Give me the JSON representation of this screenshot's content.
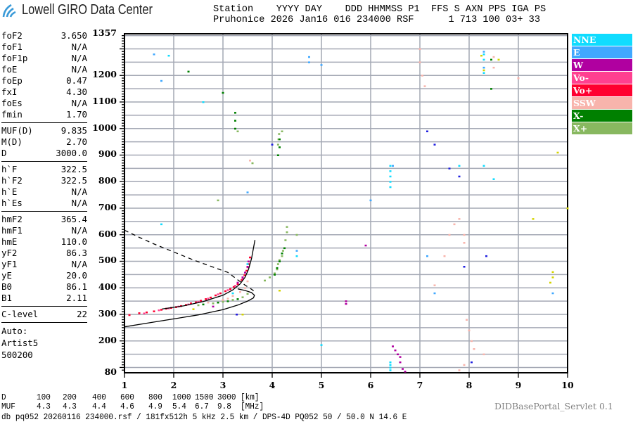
{
  "header": {
    "logo_text": "Lowell GIRO Data Center",
    "line1": "Station    YYYY DAY    DDD HHMMSS P1  FFS S AXN PPS IGA PS",
    "line2": "Pruhonice 2026 Jan16 016 234000 RSF      1 713 100 03+ 33"
  },
  "params": {
    "group1": [
      [
        "foF2",
        "3.650"
      ],
      [
        "foF1",
        "N/A"
      ],
      [
        "foF1p",
        "N/A"
      ],
      [
        "foE",
        "N/A"
      ],
      [
        "foEp",
        "0.47"
      ],
      [
        "fxI",
        "4.30"
      ],
      [
        "foEs",
        "N/A"
      ],
      [
        "fmin",
        "1.70"
      ]
    ],
    "group2": [
      [
        "MUF(D)",
        "9.835"
      ],
      [
        "M(D)",
        "2.70"
      ],
      [
        "D",
        "3000.0"
      ]
    ],
    "group3": [
      [
        "h`F",
        "322.5"
      ],
      [
        "h`F2",
        "322.5"
      ],
      [
        "h`E",
        "N/A"
      ],
      [
        "h`Es",
        "N/A"
      ]
    ],
    "group4": [
      [
        "hmF2",
        "365.4"
      ],
      [
        "hmF1",
        "N/A"
      ],
      [
        "hmE",
        "110.0"
      ],
      [
        "yF2",
        "86.3"
      ],
      [
        "yF1",
        "N/A"
      ],
      [
        "yE",
        "20.0"
      ],
      [
        "B0",
        "86.1"
      ],
      [
        "B1",
        "2.11"
      ]
    ],
    "group5": [
      [
        "C-level",
        "22"
      ]
    ],
    "auto": [
      "Auto:",
      "Artist5",
      "500200"
    ]
  },
  "legend": [
    {
      "label": "NNE",
      "color": "#10dcff"
    },
    {
      "label": "E",
      "color": "#40a8ff"
    },
    {
      "label": "W",
      "color": "#b000a0"
    },
    {
      "label": "Vo-",
      "color": "#ff4090"
    },
    {
      "label": "Vo+",
      "color": "#ff0030"
    },
    {
      "label": "SSW",
      "color": "#f8b4ac"
    },
    {
      "label": "X-",
      "color": "#008000"
    },
    {
      "label": "X+",
      "color": "#88b860"
    }
  ],
  "unlabeled_colors": {
    "yellow": "#d4d400",
    "blue": "#2020e0"
  },
  "mufs": {
    "d_label": "D",
    "d_values": [
      "100",
      "200",
      "400",
      "600",
      "800",
      "1000",
      "1500",
      "3000"
    ],
    "d_unit": "[km]",
    "muf_label": "MUF",
    "muf_values": [
      "4.3",
      "4.3",
      "4.4",
      "4.6",
      "4.9",
      "5.4",
      "6.7",
      "9.8"
    ],
    "muf_unit": "[MHz]"
  },
  "footer": {
    "servlet": "DIDBasePortal_Servlet 0.1",
    "db_line": "db pq052 20260116 234000.rsf / 181fx512h 5 kHz 2.5 km / DPS-4D PQ052 50 / 50.0 N 14.6 E"
  },
  "chart_data": {
    "type": "scatter",
    "title": "",
    "xlabel": "",
    "ylabel": "",
    "xlim": [
      1,
      10
    ],
    "ylim": [
      80,
      1357
    ],
    "x_ticks": [
      "1",
      "2",
      "3",
      "4",
      "5",
      "6",
      "7",
      "8",
      "9",
      "10"
    ],
    "y_ticks": [
      "1357",
      "1200",
      "1100",
      "1000",
      "900",
      "800",
      "700",
      "600",
      "500",
      "400",
      "300",
      "200",
      "80"
    ],
    "grid": true,
    "legend_placement": "right",
    "profile_solid": [
      [
        1.0,
        253
      ],
      [
        1.5,
        268
      ],
      [
        2.0,
        283
      ],
      [
        2.5,
        298
      ],
      [
        3.0,
        318
      ],
      [
        3.3,
        335
      ],
      [
        3.5,
        350
      ],
      [
        3.62,
        362
      ],
      [
        3.64,
        372
      ],
      [
        3.58,
        382
      ],
      [
        3.45,
        390
      ],
      [
        3.3,
        396
      ]
    ],
    "profile_solid_upper": [
      [
        1.76,
        320
      ],
      [
        2.2,
        332
      ],
      [
        2.6,
        348
      ],
      [
        3.0,
        372
      ],
      [
        3.2,
        392
      ],
      [
        3.35,
        415
      ],
      [
        3.45,
        440
      ],
      [
        3.52,
        470
      ],
      [
        3.58,
        510
      ],
      [
        3.62,
        550
      ],
      [
        3.65,
        580
      ]
    ],
    "profile_dashed": [
      [
        1.0,
        617
      ],
      [
        1.3,
        590
      ],
      [
        1.6,
        565
      ],
      [
        2.0,
        535
      ],
      [
        2.4,
        505
      ],
      [
        2.8,
        478
      ],
      [
        3.1,
        458
      ],
      [
        3.3,
        430
      ],
      [
        3.45,
        410
      ],
      [
        3.6,
        392
      ],
      [
        3.64,
        385
      ]
    ],
    "traces": [
      {
        "key": "Vo+",
        "points": [
          [
            1.1,
            298
          ],
          [
            1.3,
            305
          ],
          [
            1.45,
            308
          ],
          [
            1.6,
            312
          ],
          [
            1.75,
            318
          ],
          [
            1.85,
            322
          ],
          [
            1.95,
            325
          ],
          [
            2.05,
            328
          ],
          [
            2.15,
            332
          ],
          [
            2.25,
            336
          ],
          [
            2.35,
            342
          ],
          [
            2.45,
            346
          ],
          [
            2.55,
            352
          ],
          [
            2.65,
            358
          ],
          [
            2.75,
            364
          ],
          [
            2.85,
            372
          ],
          [
            2.95,
            380
          ],
          [
            3.05,
            388
          ],
          [
            3.15,
            396
          ],
          [
            3.22,
            404
          ],
          [
            3.3,
            415
          ],
          [
            3.38,
            430
          ],
          [
            3.44,
            448
          ],
          [
            3.48,
            465
          ],
          [
            3.52,
            490
          ],
          [
            3.55,
            515
          ]
        ]
      },
      {
        "key": "Vo-",
        "points": [
          [
            1.4,
            304
          ],
          [
            1.7,
            316
          ],
          [
            1.9,
            323
          ],
          [
            2.1,
            330
          ],
          [
            2.3,
            338
          ],
          [
            2.5,
            348
          ],
          [
            2.7,
            360
          ],
          [
            2.9,
            376
          ],
          [
            3.1,
            392
          ],
          [
            3.25,
            408
          ],
          [
            3.4,
            435
          ],
          [
            3.5,
            478
          ]
        ]
      },
      {
        "key": "W",
        "points": [
          [
            3.3,
            420
          ],
          [
            3.4,
            440
          ],
          [
            3.45,
            458
          ],
          [
            3.5,
            480
          ],
          [
            3.52,
            500
          ],
          [
            3.28,
            300
          ],
          [
            5.5,
            340
          ],
          [
            5.5,
            350
          ],
          [
            6.45,
            180
          ],
          [
            6.5,
            165
          ],
          [
            6.55,
            150
          ],
          [
            6.6,
            140
          ],
          [
            6.6,
            120
          ],
          [
            6.65,
            95
          ],
          [
            6.7,
            85
          ],
          [
            5.9,
            560
          ],
          [
            2.8,
            330
          ]
        ]
      },
      {
        "key": "SSW",
        "points": [
          [
            3.0,
            355
          ],
          [
            3.2,
            370
          ],
          [
            3.35,
            385
          ],
          [
            3.45,
            400
          ],
          [
            3.5,
            425
          ],
          [
            3.1,
            360
          ],
          [
            2.7,
            345
          ],
          [
            7.3,
            410
          ],
          [
            7.5,
            520
          ],
          [
            7.6,
            600
          ],
          [
            7.7,
            640
          ],
          [
            7.8,
            660
          ],
          [
            7.9,
            600
          ],
          [
            7.9,
            570
          ],
          [
            7.95,
            280
          ],
          [
            8.0,
            240
          ],
          [
            8.05,
            200
          ],
          [
            8.1,
            170
          ],
          [
            8.3,
            150
          ],
          [
            7.8,
            90
          ],
          [
            7.9,
            110
          ],
          [
            8.5,
            1270
          ],
          [
            8.5,
            1230
          ],
          [
            7.05,
            1200
          ],
          [
            7.1,
            1160
          ],
          [
            7.0,
            1250
          ],
          [
            9.0,
            1190
          ],
          [
            7.0,
            1300
          ],
          [
            3.55,
            880
          ]
        ]
      },
      {
        "key": "X+",
        "points": [
          [
            2.5,
            335
          ],
          [
            2.8,
            342
          ],
          [
            3.0,
            348
          ],
          [
            3.2,
            355
          ],
          [
            3.4,
            365
          ],
          [
            3.5,
            378
          ],
          [
            3.85,
            428
          ],
          [
            3.95,
            440
          ],
          [
            4.05,
            455
          ],
          [
            4.1,
            470
          ],
          [
            4.12,
            490
          ],
          [
            4.15,
            505
          ],
          [
            4.2,
            520
          ],
          [
            4.22,
            540
          ],
          [
            4.27,
            580
          ],
          [
            4.3,
            610
          ],
          [
            4.3,
            630
          ],
          [
            4.12,
            940
          ],
          [
            4.13,
            960
          ],
          [
            4.14,
            980
          ],
          [
            4.2,
            990
          ],
          [
            3.6,
            870
          ],
          [
            2.9,
            730
          ],
          [
            3.3,
            990
          ],
          [
            4.5,
            600
          ]
        ]
      },
      {
        "key": "X-",
        "points": [
          [
            2.6,
            338
          ],
          [
            2.9,
            345
          ],
          [
            3.1,
            350
          ],
          [
            3.3,
            358
          ],
          [
            4.05,
            450
          ],
          [
            4.1,
            475
          ],
          [
            4.15,
            500
          ],
          [
            4.2,
            530
          ],
          [
            4.25,
            550
          ],
          [
            4.12,
            900
          ],
          [
            4.15,
            930
          ],
          [
            4.15,
            960
          ],
          [
            3.25,
            1000
          ],
          [
            3.25,
            1030
          ],
          [
            3.25,
            1060
          ],
          [
            2.3,
            1215
          ],
          [
            3.0,
            1135
          ],
          [
            8.45,
            1260
          ],
          [
            8.45,
            1150
          ]
        ]
      },
      {
        "key": "NNE",
        "points": [
          [
            6.4,
            780
          ],
          [
            6.4,
            800
          ],
          [
            6.4,
            820
          ],
          [
            6.4,
            840
          ],
          [
            6.4,
            860
          ],
          [
            6.4,
            90
          ],
          [
            6.4,
            100
          ],
          [
            6.4,
            110
          ],
          [
            6.4,
            120
          ],
          [
            8.3,
            1280
          ],
          [
            8.3,
            1260
          ],
          [
            8.3,
            1230
          ],
          [
            8.3,
            1210
          ],
          [
            3.5,
            490
          ],
          [
            3.2,
            380
          ],
          [
            1.75,
            640
          ],
          [
            4.5,
            520
          ],
          [
            5.0,
            185
          ],
          [
            2.6,
            1100
          ],
          [
            1.9,
            1275
          ],
          [
            7.8,
            860
          ],
          [
            8.3,
            860
          ],
          [
            8.5,
            810
          ]
        ]
      },
      {
        "key": "E",
        "points": [
          [
            1.6,
            1280
          ],
          [
            1.75,
            1180
          ],
          [
            4.75,
            1270
          ],
          [
            4.75,
            1250
          ],
          [
            5.0,
            1240
          ],
          [
            6.0,
            730
          ],
          [
            6.45,
            860
          ],
          [
            7.15,
            520
          ],
          [
            7.3,
            380
          ],
          [
            8.3,
            1290
          ],
          [
            8.3,
            1230
          ],
          [
            9.7,
            380
          ],
          [
            4.5,
            540
          ],
          [
            3.5,
            760
          ]
        ]
      },
      {
        "key": "yellow",
        "points": [
          [
            8.25,
            1275
          ],
          [
            8.3,
            1220
          ],
          [
            8.6,
            1260
          ],
          [
            9.7,
            440
          ],
          [
            9.7,
            460
          ],
          [
            9.65,
            420
          ],
          [
            9.8,
            910
          ],
          [
            10.0,
            700
          ],
          [
            3.4,
            300
          ],
          [
            4.15,
            390
          ],
          [
            2.4,
            320
          ],
          [
            9.3,
            660
          ]
        ]
      },
      {
        "key": "blue",
        "points": [
          [
            3.28,
            300
          ],
          [
            4.0,
            940
          ],
          [
            7.6,
            850
          ],
          [
            7.3,
            940
          ],
          [
            7.8,
            820
          ],
          [
            7.9,
            480
          ],
          [
            7.15,
            990
          ],
          [
            8.05,
            120
          ],
          [
            8.35,
            520
          ]
        ]
      }
    ]
  }
}
